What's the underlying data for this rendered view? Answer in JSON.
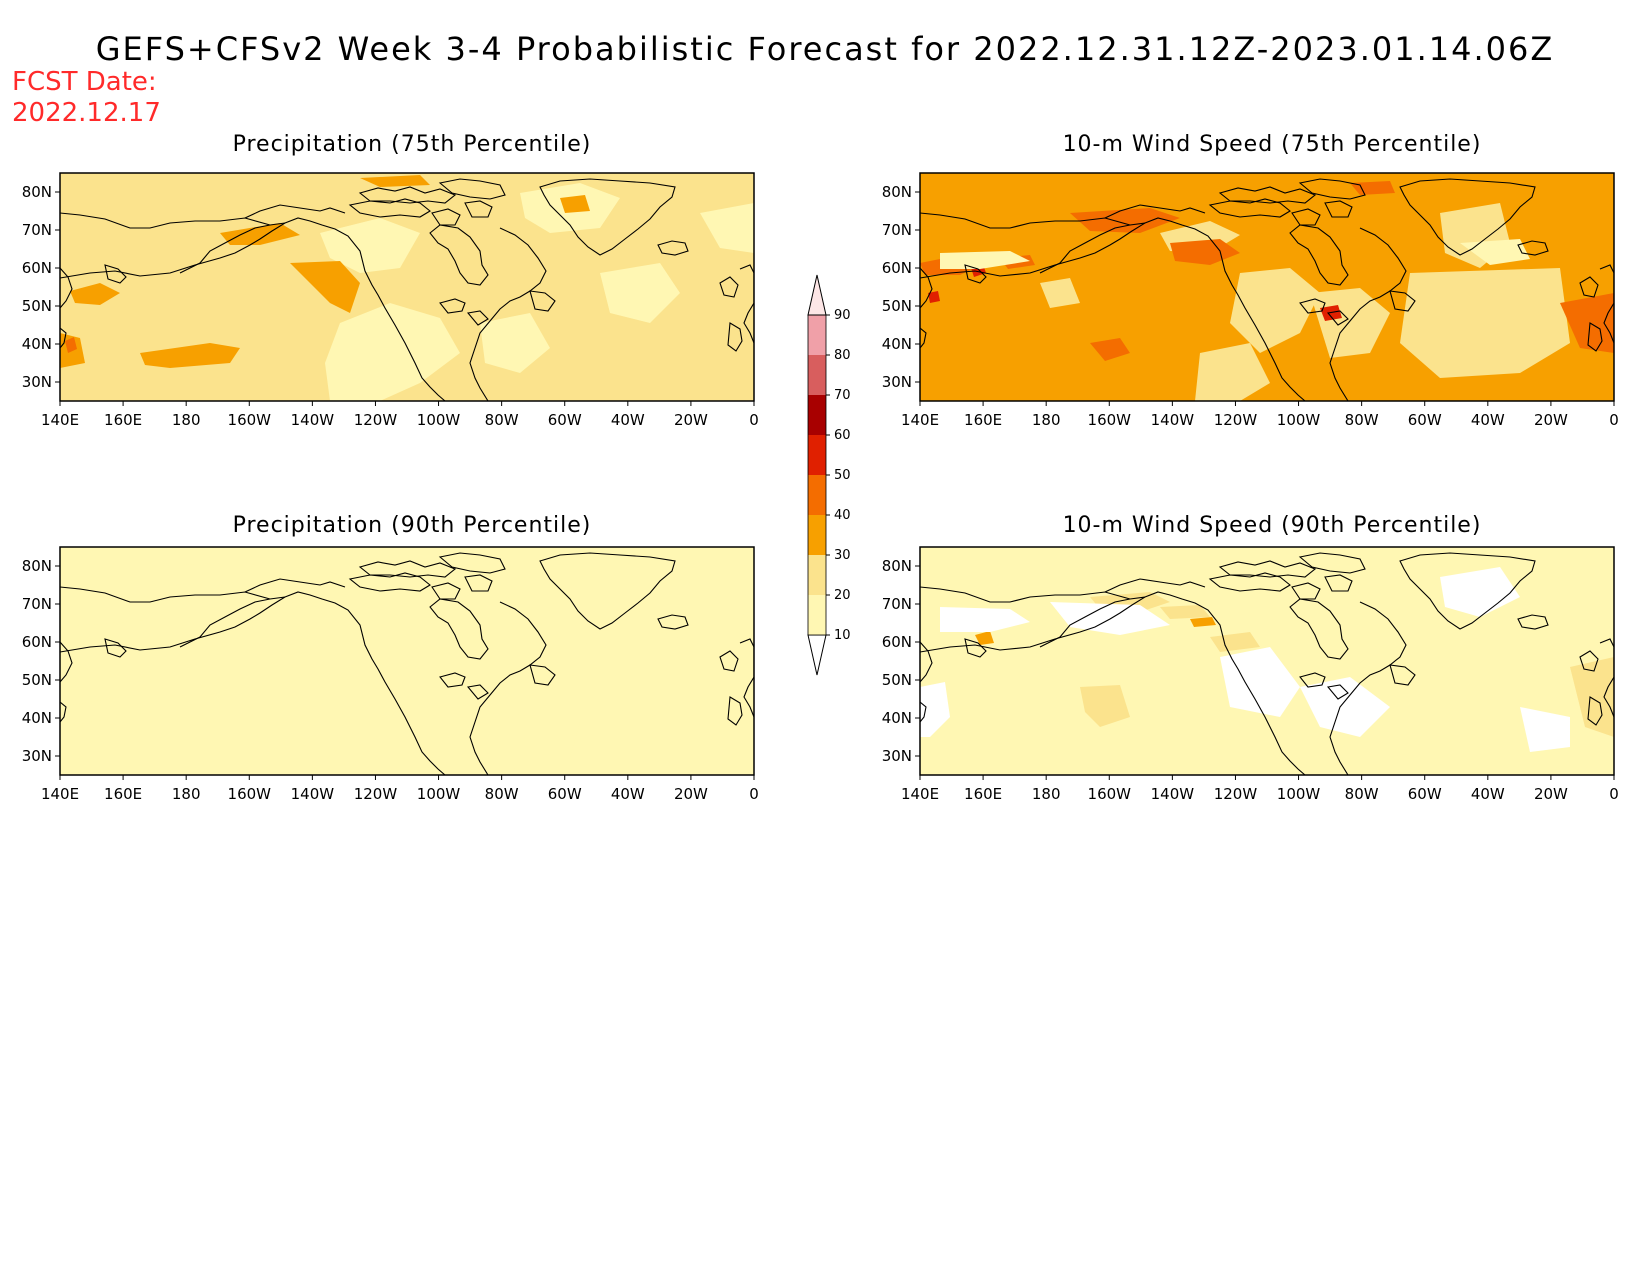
{
  "title": "GEFS+CFSv2 Week 3-4 Probabilistic Forecast for 2022.12.31.12Z-2023.01.14.06Z",
  "fcst_date_label": "FCST Date:",
  "fcst_date_value": "2022.12.17",
  "colors": {
    "c10_20": "#fff7b3",
    "c20_30": "#fbe38d",
    "c30_40": "#f7a000",
    "c40_50": "#f46d00",
    "c50_60": "#e02000",
    "c60_70": "#a80000",
    "c70_80": "#d85e5e",
    "c80_90": "#f0a0a8",
    "c90_plus": "#fde6e6",
    "coast": "#000000"
  },
  "colorbar": {
    "ticks": [
      "10",
      "20",
      "30",
      "40",
      "50",
      "60",
      "70",
      "80",
      "90"
    ],
    "colors": [
      "#fff7b3",
      "#fbe38d",
      "#f7a000",
      "#f46d00",
      "#e02000",
      "#a80000",
      "#d85e5e",
      "#f0a0a8"
    ]
  },
  "axes": {
    "lon_ticks": [
      "140E",
      "160E",
      "180",
      "160W",
      "140W",
      "120W",
      "100W",
      "80W",
      "60W",
      "40W",
      "20W",
      "0"
    ],
    "lat_ticks": [
      "80N",
      "70N",
      "60N",
      "50N",
      "40N",
      "30N"
    ],
    "lon_range": [
      140,
      360
    ],
    "lat_range": [
      25,
      85
    ]
  },
  "panels": [
    {
      "title": "Precipitation (75th Percentile)",
      "base": "c20_30",
      "id": "p75"
    },
    {
      "title": "10-m Wind Speed (75th Percentile)",
      "base": "c30_40",
      "id": "w75"
    },
    {
      "title": "Precipitation (90th Percentile)",
      "base": "c10_20",
      "id": "p90"
    },
    {
      "title": "10-m Wind Speed (90th Percentile)",
      "base": "c10_20",
      "id": "w90"
    }
  ]
}
